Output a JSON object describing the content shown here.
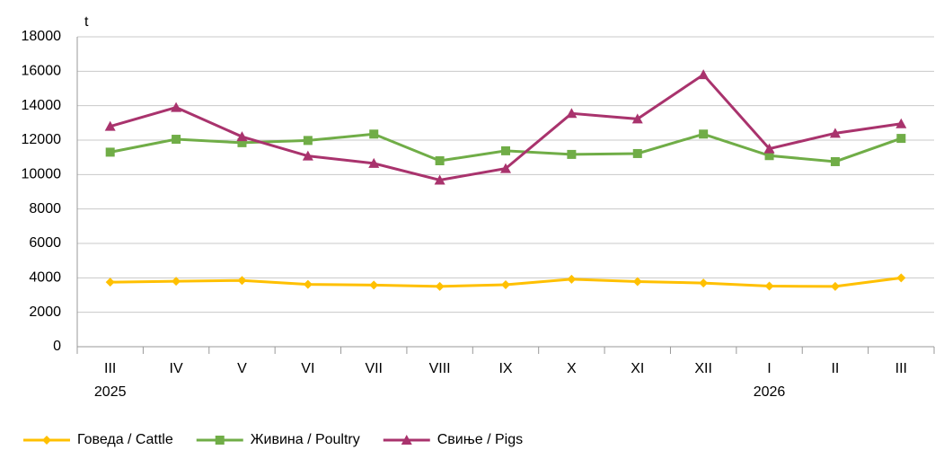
{
  "chart_data": {
    "type": "line",
    "y_unit": "t",
    "categories": [
      "III",
      "IV",
      "V",
      "VI",
      "VII",
      "VIII",
      "IX",
      "X",
      "XI",
      "XII",
      "I",
      "II",
      "III"
    ],
    "category_years": [
      "2025",
      null,
      null,
      null,
      null,
      null,
      null,
      null,
      null,
      null,
      "2026",
      null,
      null
    ],
    "series": [
      {
        "name": "Говеда / Cattle",
        "color": "#ffc000",
        "marker": "diamond",
        "values": [
          3750,
          3800,
          3850,
          3620,
          3580,
          3500,
          3600,
          3920,
          3780,
          3700,
          3520,
          3500,
          4000
        ]
      },
      {
        "name": "Живина / Poultry",
        "color": "#70ad47",
        "marker": "square",
        "values": [
          11300,
          12050,
          11850,
          11980,
          12350,
          10800,
          11380,
          11170,
          11220,
          12350,
          11100,
          10750,
          12100
        ]
      },
      {
        "name": "Свиње / Pigs",
        "color": "#a9336d",
        "marker": "triangle",
        "values": [
          12800,
          13900,
          12200,
          11080,
          10650,
          9680,
          10350,
          13550,
          13230,
          15800,
          11500,
          12400,
          12950
        ]
      }
    ],
    "ylim": [
      0,
      18000
    ],
    "yticks": [
      0,
      2000,
      4000,
      6000,
      8000,
      10000,
      12000,
      14000,
      16000,
      18000
    ],
    "grid": true,
    "legend": "bottom"
  }
}
